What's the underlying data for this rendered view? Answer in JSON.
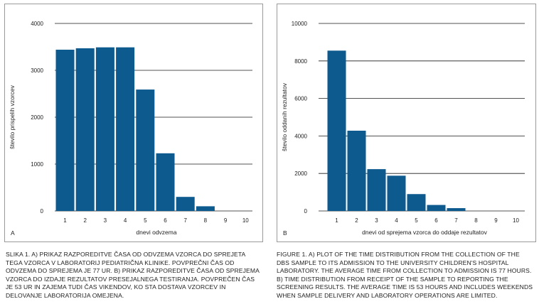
{
  "colors": {
    "bar": "#0d5a8f",
    "grid": "#1a1a1a",
    "border": "#9a9a9a",
    "text": "#222222"
  },
  "chart_data": [
    {
      "type": "bar",
      "panel_label": "A",
      "categories": [
        "1",
        "2",
        "3",
        "4",
        "5",
        "6",
        "7",
        "8",
        "9",
        "10"
      ],
      "values": [
        3440,
        3470,
        3490,
        3490,
        2590,
        1230,
        300,
        100,
        0,
        0
      ],
      "xlabel": "dnevi odvzema",
      "ylabel": "število prispelih vzorcev",
      "ylim": [
        0,
        4000
      ],
      "yticks": [
        0,
        1000,
        2000,
        3000,
        4000
      ],
      "grid": true
    },
    {
      "type": "bar",
      "panel_label": "B",
      "categories": [
        "1",
        "2",
        "3",
        "4",
        "5",
        "6",
        "7",
        "8",
        "9",
        "10"
      ],
      "values": [
        8550,
        4280,
        2230,
        1880,
        900,
        320,
        150,
        0,
        0,
        0
      ],
      "xlabel": "dnevi od sprejema vzorca do oddaje rezultatov",
      "ylabel": "število oddanih rezultatov",
      "ylim": [
        0,
        10000
      ],
      "yticks": [
        0,
        2000,
        4000,
        6000,
        8000,
        10000
      ],
      "grid": true
    }
  ],
  "captions": {
    "slovenian": "Slika 1. A) Prikaz razporeditve časa od odvzema vzorca do sprejeta tega vzorca v Laboratorij Pediatrična klinike. Povprečni čas od odvzema do sprejema je 77 ur. B) Prikaz razporeditve časa od sprejema vzorca do izdaje rezultatov presejalnega testiranja. Povprečen čas je 53 ur in zajema tudi čas vikendov, ko sta dostava vzorcev in delovanje laboratorija omejena.",
    "english": "Figure 1. A) Plot of the time distribution from the collection of the DBS sample to its admission to the University Children's Hospital Laboratory. The average time from collection to admission is 77 hours. B) Time distribution from receipt of the sample to reporting the screening results. The average time is 53 hours and includes weekends when sample delivery and laboratory operations are limited."
  }
}
